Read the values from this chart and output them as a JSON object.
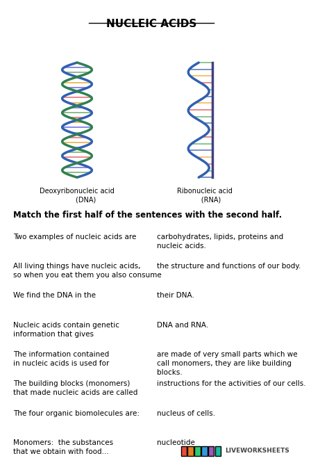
{
  "title": "NUCLEIC ACIDS",
  "instruction": "Match the first half of the sentences with the second half.",
  "left_sentences": [
    "Two examples of nucleic acids are",
    "All living things have nucleic acids,\nso when you eat them you also consume",
    "We find the DNA in the",
    "Nucleic acids contain genetic\ninformation that gives",
    "The information contained\nin nucleic acids is used for",
    "The building blocks (monomers)\nthat made nucleic acids are called",
    "The four organic biomolecules are:",
    "Monomers:  the substances\nthat we obtain with food..."
  ],
  "right_sentences": [
    "carbohydrates, lipids, proteins and\nnucleic acids.",
    "the structure and functions of our body.",
    "their DNA.",
    "DNA and RNA.",
    "are made of very small parts which we\ncall monomers, they are like building\nblocks.",
    "instructions for the activities of our cells.",
    "nucleus of cells.",
    "nucleotide"
  ],
  "dna_label_left": "Deoxyribonucleic acid\n        (DNA)",
  "dna_label_right": "Ribonucleic acid\n      (RNA)",
  "background_color": "#ffffff",
  "text_color": "#000000",
  "title_fontsize": 11,
  "instruction_fontsize": 8.5,
  "body_fontsize": 7.5,
  "liveworksheets_text": "LIVEWORKSHEETS",
  "lw_colors": [
    "#e74c3c",
    "#e67e22",
    "#2ecc71",
    "#3498db",
    "#9b59b6",
    "#1abc9c"
  ]
}
